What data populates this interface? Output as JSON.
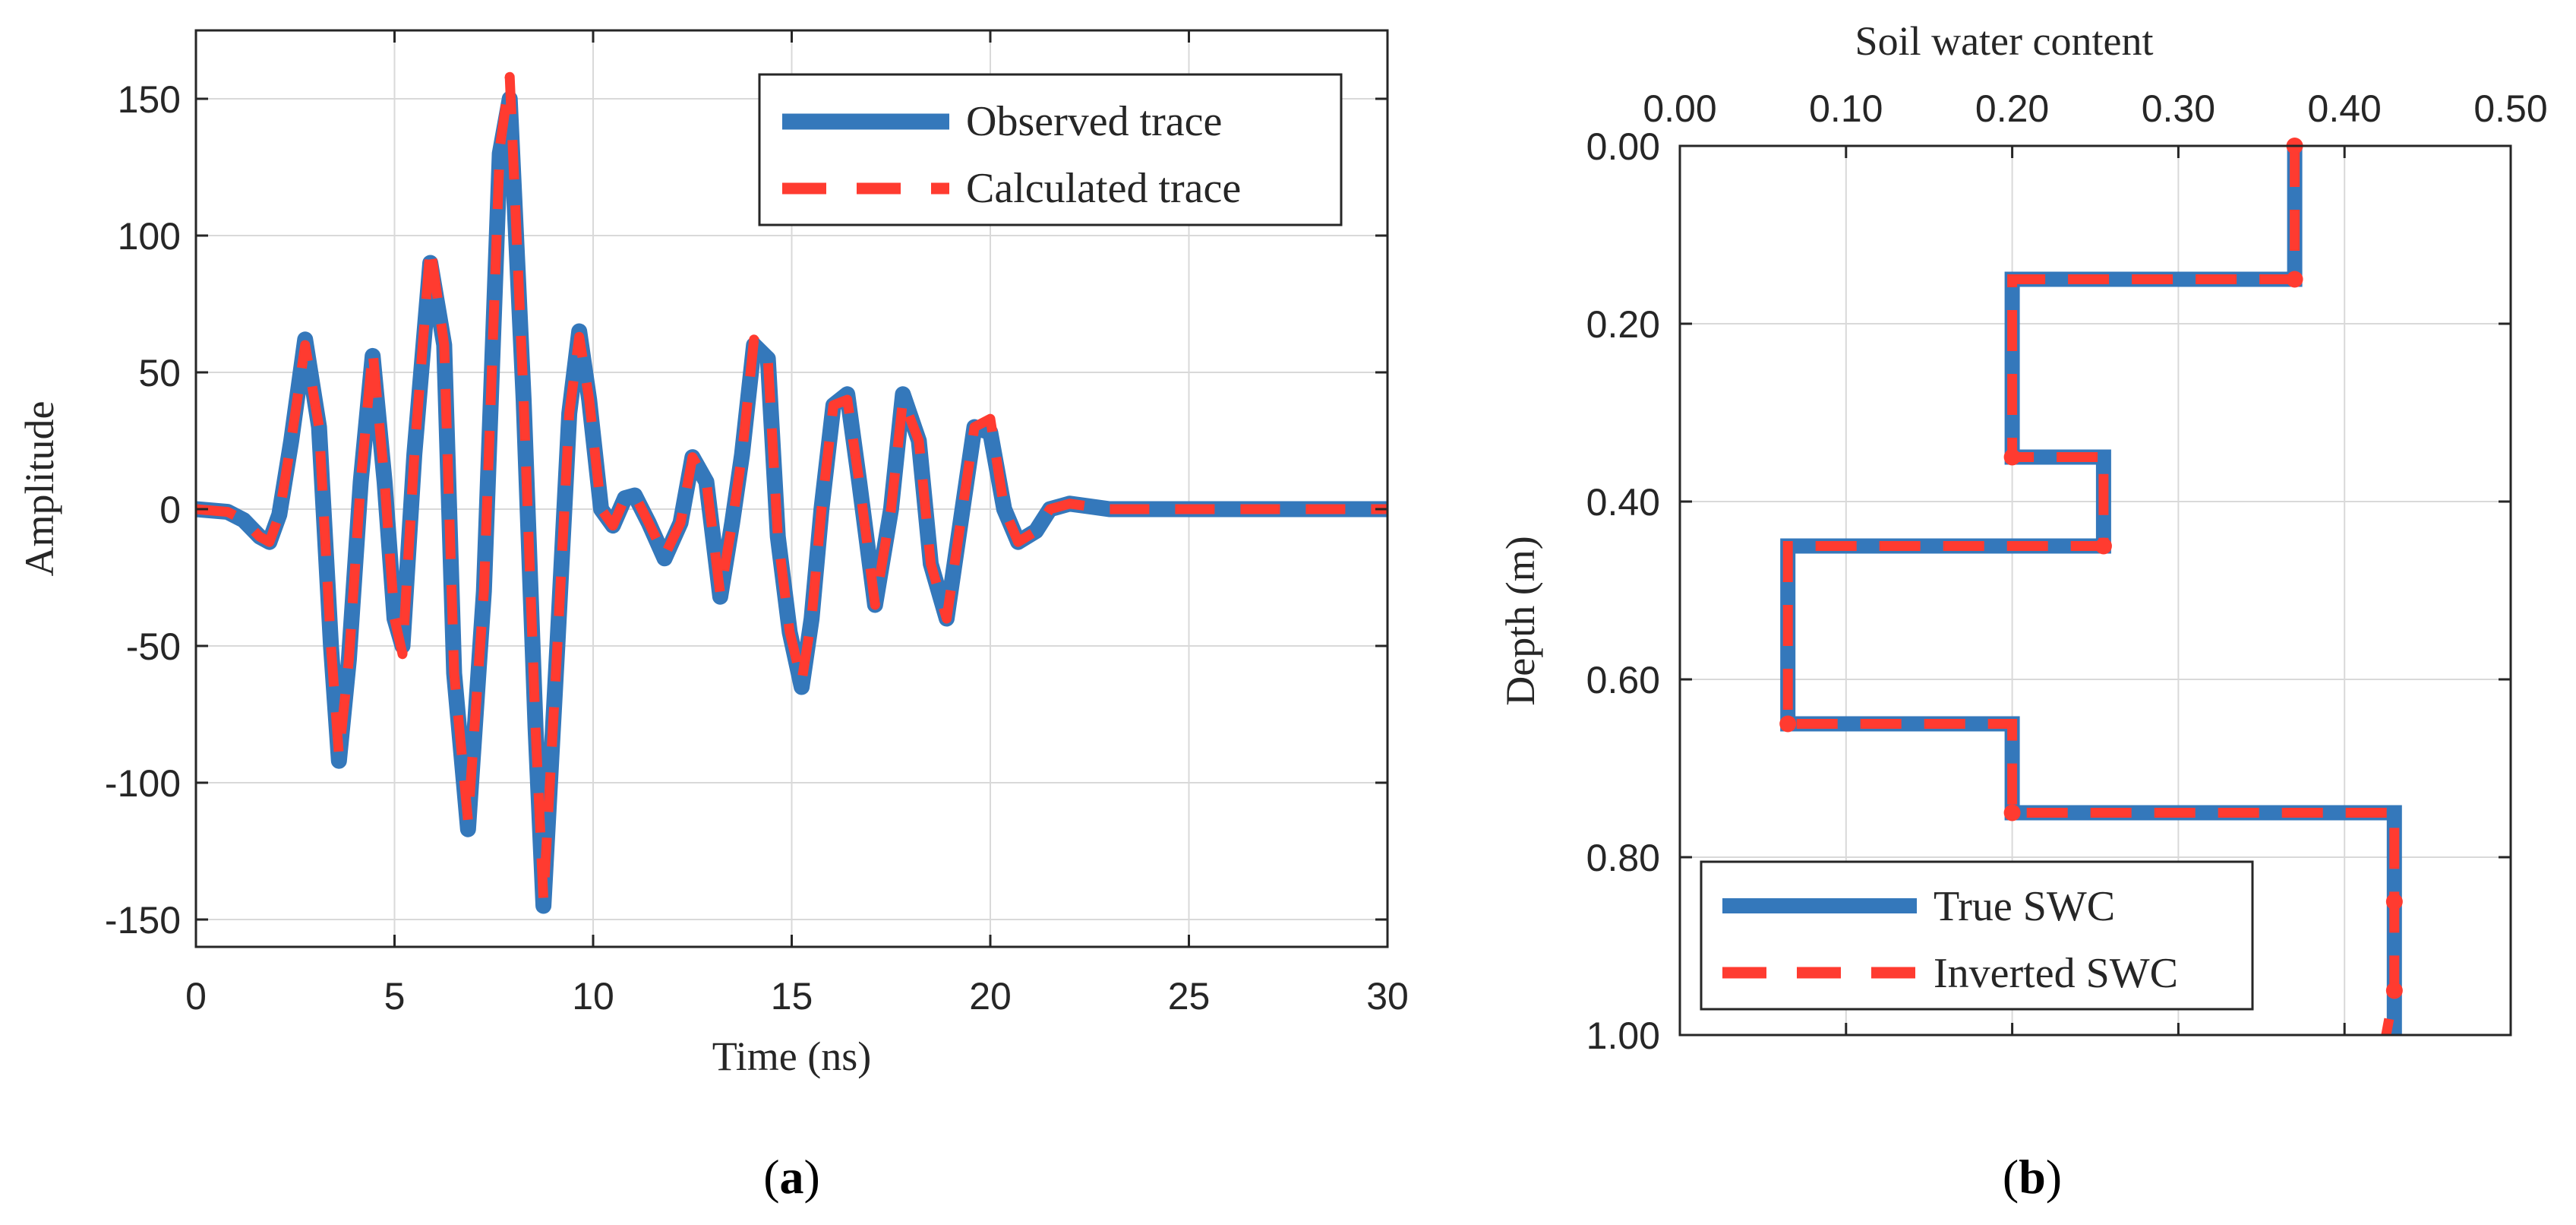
{
  "colors": {
    "observed": "#3478bb",
    "calculated": "#ff3b30",
    "grid": "#d9d9d9",
    "axis": "#262626"
  },
  "chart_data": [
    {
      "panel": "(a)",
      "panel_letter": "a",
      "type": "line",
      "title": "",
      "xlabel": "Time (ns)",
      "ylabel": "Amplitude",
      "xlim": [
        0,
        30
      ],
      "ylim": [
        -160,
        175
      ],
      "xticks": [
        0,
        5,
        10,
        15,
        20,
        25,
        30
      ],
      "xtick_labels": [
        "0",
        "5",
        "10",
        "15",
        "20",
        "25",
        "30"
      ],
      "yticks": [
        -150,
        -100,
        -50,
        0,
        50,
        100,
        150
      ],
      "ytick_labels": [
        "-150",
        "-100",
        "-50",
        "0",
        "50",
        "100",
        "150"
      ],
      "grid": true,
      "legend": {
        "position": "top-right",
        "entries": [
          "Observed trace",
          "Calculated trace"
        ]
      },
      "series": [
        {
          "name": "Observed trace",
          "style": "solid",
          "x": [
            0,
            0.8,
            1.2,
            1.6,
            1.85,
            2.1,
            2.4,
            2.75,
            3.1,
            3.4,
            3.6,
            3.85,
            4.15,
            4.45,
            4.75,
            5.0,
            5.2,
            5.5,
            5.9,
            6.25,
            6.5,
            6.85,
            7.25,
            7.65,
            7.9,
            8.25,
            8.55,
            8.75,
            9.1,
            9.4,
            9.65,
            9.9,
            10.2,
            10.5,
            10.8,
            11.05,
            11.4,
            11.8,
            12.2,
            12.5,
            12.85,
            13.2,
            13.5,
            13.75,
            14.05,
            14.4,
            14.65,
            14.95,
            15.25,
            15.5,
            15.75,
            16.05,
            16.4,
            16.7,
            17.1,
            17.5,
            17.8,
            18.2,
            18.5,
            18.9,
            19.3,
            19.6,
            20.0,
            20.35,
            20.7,
            21.15,
            21.5,
            22.0,
            22.5,
            23.0,
            23.5,
            30
          ],
          "y": [
            0,
            -1,
            -4,
            -10,
            -12,
            -2,
            25,
            62,
            30,
            -50,
            -92,
            -55,
            10,
            56,
            10,
            -40,
            -50,
            20,
            90,
            60,
            -60,
            -117,
            -30,
            130,
            150,
            40,
            -80,
            -145,
            -50,
            35,
            65,
            40,
            0,
            -6,
            4,
            5,
            -5,
            -18,
            -5,
            19,
            10,
            -32,
            -5,
            20,
            60,
            55,
            -10,
            -45,
            -65,
            -40,
            0,
            38,
            42,
            10,
            -35,
            0,
            42,
            25,
            -20,
            -40,
            0,
            30,
            28,
            0,
            -12,
            -8,
            0,
            2,
            1,
            0,
            0,
            0
          ]
        },
        {
          "name": "Calculated trace",
          "style": "dashed",
          "x": [
            0,
            0.8,
            1.2,
            1.6,
            1.85,
            2.1,
            2.4,
            2.75,
            3.1,
            3.4,
            3.6,
            3.85,
            4.15,
            4.45,
            4.75,
            5.0,
            5.2,
            5.5,
            5.9,
            6.25,
            6.5,
            6.85,
            7.25,
            7.65,
            7.9,
            8.25,
            8.55,
            8.75,
            9.1,
            9.4,
            9.65,
            9.9,
            10.2,
            10.5,
            10.8,
            11.05,
            11.4,
            11.8,
            12.2,
            12.5,
            12.85,
            13.2,
            13.5,
            13.75,
            14.05,
            14.4,
            14.65,
            14.95,
            15.25,
            15.5,
            15.75,
            16.05,
            16.4,
            16.7,
            17.1,
            17.5,
            17.8,
            18.2,
            18.5,
            18.9,
            19.3,
            19.6,
            20.0,
            20.35,
            20.7,
            21.15,
            21.5,
            22.0,
            22.5,
            23.0,
            23.5,
            30
          ],
          "y": [
            0,
            -1,
            -4,
            -10,
            -12,
            -2,
            25,
            60,
            30,
            -50,
            -90,
            -55,
            10,
            58,
            10,
            -40,
            -53,
            20,
            96,
            60,
            -60,
            -114,
            -30,
            132,
            158,
            40,
            -80,
            -143,
            -50,
            35,
            63,
            40,
            0,
            -6,
            4,
            5,
            -5,
            -17,
            -5,
            19,
            10,
            -31,
            -5,
            20,
            62,
            55,
            -10,
            -45,
            -63,
            -40,
            0,
            38,
            40,
            10,
            -35,
            0,
            40,
            25,
            -20,
            -40,
            0,
            30,
            33,
            0,
            -12,
            -8,
            0,
            2,
            1,
            0,
            0,
            0
          ]
        }
      ]
    },
    {
      "panel": "(b)",
      "panel_letter": "b",
      "type": "line",
      "title": "",
      "xlabel": "Soil water content",
      "ylabel": "Depth (m)",
      "xaxis_location": "top",
      "y_reversed": true,
      "xlim": [
        0,
        0.5
      ],
      "ylim": [
        0,
        1.0
      ],
      "xticks": [
        0,
        0.1,
        0.2,
        0.3,
        0.4,
        0.5
      ],
      "xtick_labels": [
        "0.00",
        "0.10",
        "0.20",
        "0.30",
        "0.40",
        "0.50"
      ],
      "yticks": [
        0,
        0.2,
        0.4,
        0.6,
        0.8,
        1.0
      ],
      "ytick_labels": [
        "0.00",
        "0.20",
        "0.40",
        "0.60",
        "0.80",
        "1.00"
      ],
      "grid": true,
      "legend": {
        "position": "bottom-left",
        "entries": [
          "True SWC",
          "Inverted SWC"
        ]
      },
      "series": [
        {
          "name": "True SWC",
          "style": "solid",
          "x": [
            0.37,
            0.37,
            0.2,
            0.2,
            0.255,
            0.255,
            0.065,
            0.065,
            0.2,
            0.2,
            0.43,
            0.43
          ],
          "y": [
            0.0,
            0.15,
            0.15,
            0.35,
            0.35,
            0.45,
            0.45,
            0.65,
            0.65,
            0.75,
            0.75,
            1.0
          ]
        },
        {
          "name": "Inverted SWC",
          "style": "dashed",
          "x": [
            0.37,
            0.37,
            0.2,
            0.2,
            0.255,
            0.255,
            0.065,
            0.065,
            0.2,
            0.2,
            0.43,
            0.43,
            0.425
          ],
          "y": [
            0.0,
            0.15,
            0.15,
            0.35,
            0.35,
            0.45,
            0.45,
            0.65,
            0.65,
            0.75,
            0.75,
            0.95,
            1.0
          ],
          "markers_x": [
            0.37,
            0.37,
            0.2,
            0.255,
            0.065,
            0.2,
            0.43,
            0.43
          ],
          "markers_y": [
            0.0,
            0.15,
            0.35,
            0.45,
            0.65,
            0.75,
            0.85,
            0.95
          ]
        }
      ]
    }
  ]
}
